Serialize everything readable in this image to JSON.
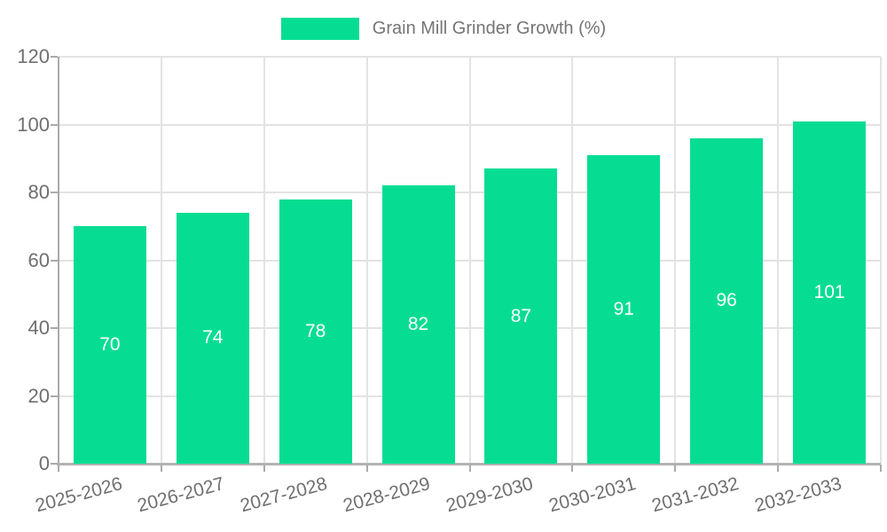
{
  "legend": {
    "label": "Grain Mill Grinder Growth (%)"
  },
  "chart_data": {
    "type": "bar",
    "title": "Grain Mill Grinder Growth (%)",
    "categories": [
      "2025-2026",
      "2026-2027",
      "2027-2028",
      "2028-2029",
      "2029-2030",
      "2030-2031",
      "2031-2032",
      "2032-2033"
    ],
    "values": [
      70,
      74,
      78,
      82,
      87,
      91,
      96,
      101
    ],
    "value_labels": [
      "70",
      "74",
      "78",
      "82",
      "87",
      "91",
      "96",
      "101"
    ],
    "xlabel": "",
    "ylabel": "",
    "ylim": [
      0,
      120
    ],
    "yticks": [
      0,
      20,
      40,
      60,
      80,
      100,
      120
    ],
    "ytick_labels": [
      "0",
      "20",
      "40",
      "60",
      "80",
      "100",
      "120"
    ],
    "grid": true,
    "legend_position": "top-center"
  },
  "colors": {
    "bar": "#06DD93",
    "grid": "#e3e3e3",
    "axis": "#aaaaaa",
    "x_axis": "#b3b3b3",
    "tick_label": "#6f6f6f",
    "legend_text": "#757575",
    "value_label": "#ffffff",
    "background": "#ffffff"
  }
}
